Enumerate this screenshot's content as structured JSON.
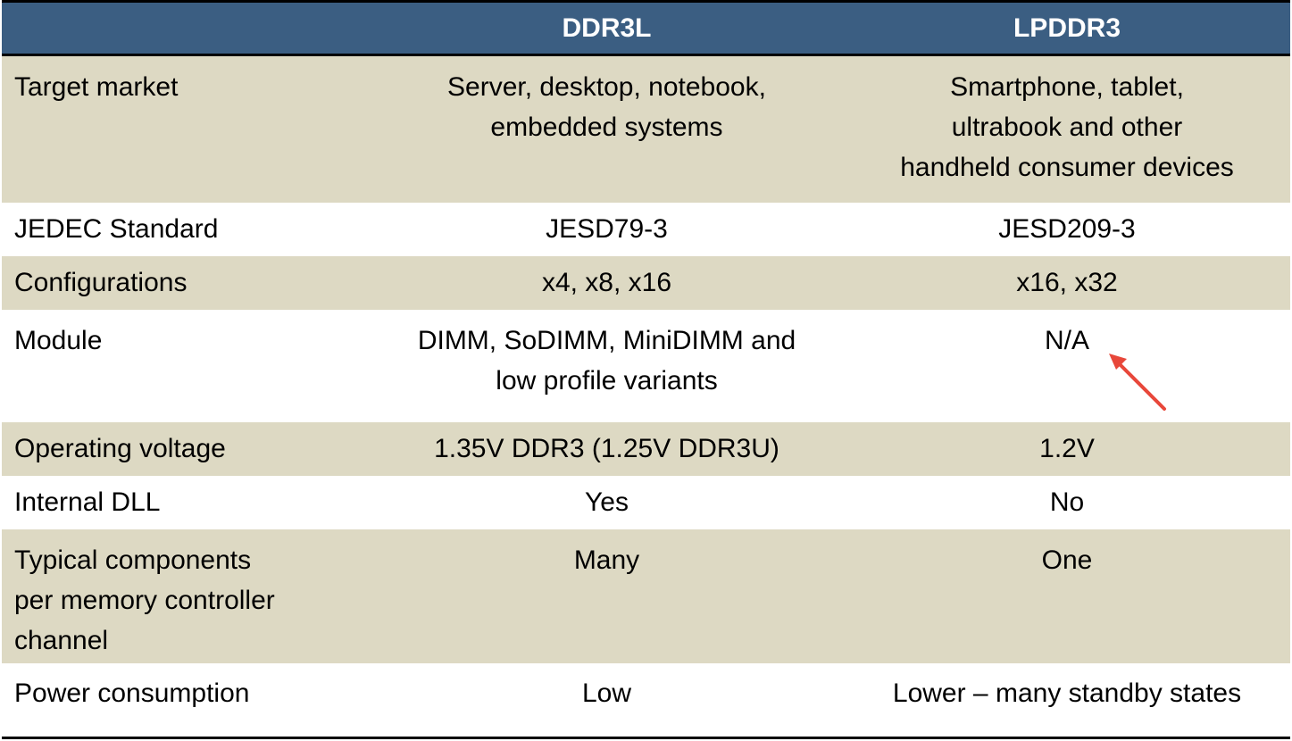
{
  "header": {
    "col1": "",
    "col2": "DDR3L",
    "col3": "LPDDR3"
  },
  "rows": [
    {
      "label": [
        "Target market"
      ],
      "ddr3l": [
        "Server, desktop, notebook,",
        "embedded systems"
      ],
      "lpddr3": [
        "Smartphone, tablet,",
        "ultrabook and other",
        "handheld consumer devices"
      ]
    },
    {
      "label": [
        "JEDEC Standard"
      ],
      "ddr3l": [
        "JESD79-3"
      ],
      "lpddr3": [
        "JESD209-3"
      ]
    },
    {
      "label": [
        "Configurations"
      ],
      "ddr3l": [
        "x4, x8, x16"
      ],
      "lpddr3": [
        "x16, x32"
      ]
    },
    {
      "label": [
        "Module"
      ],
      "ddr3l": [
        "DIMM, SoDIMM, MiniDIMM and",
        "low profile variants"
      ],
      "lpddr3": [
        "N/A"
      ]
    },
    {
      "label": [
        "Operating voltage"
      ],
      "ddr3l": [
        "1.35V DDR3 (1.25V DDR3U)"
      ],
      "lpddr3": [
        "1.2V"
      ]
    },
    {
      "label": [
        "Internal DLL"
      ],
      "ddr3l": [
        "Yes"
      ],
      "lpddr3": [
        "No"
      ]
    },
    {
      "label": [
        "Typical components",
        "per memory controller",
        "channel"
      ],
      "ddr3l": [
        "Many"
      ],
      "lpddr3": [
        "One"
      ]
    },
    {
      "label": [
        "Power consumption"
      ],
      "ddr3l": [
        "Low"
      ],
      "lpddr3": [
        "Lower – many standby states"
      ]
    }
  ],
  "colors": {
    "header_bg": "#3b5e82",
    "header_text": "#ffffff",
    "shaded_row": "#ddd9c3",
    "plain_row": "#ffffff",
    "annotation_arrow": "#e8473a"
  },
  "icons": {
    "annotation": "red-arrow-icon"
  }
}
